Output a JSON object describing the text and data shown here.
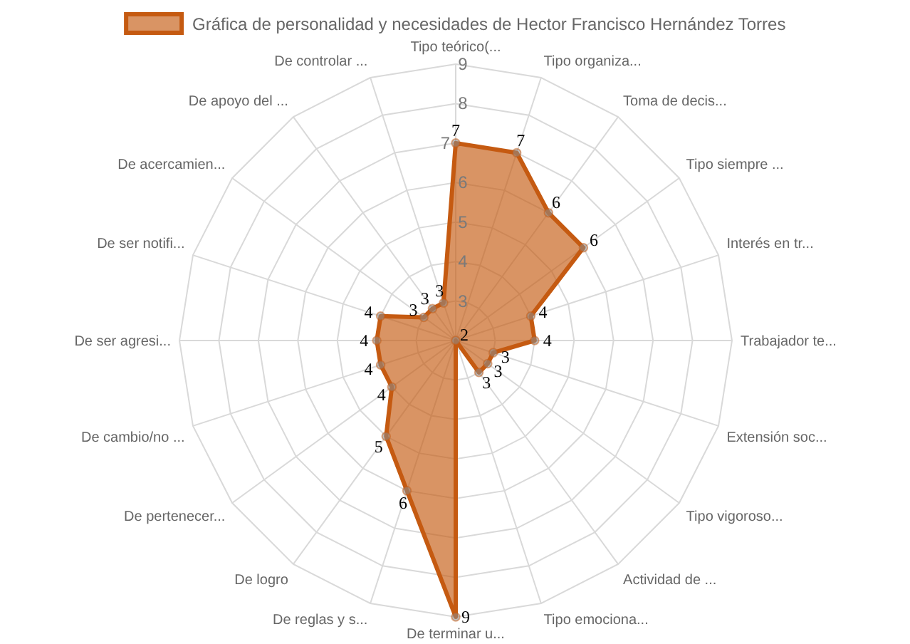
{
  "chart_data": {
    "type": "radar",
    "categories": [
      "Tipo teórico(...",
      "Tipo organiza...",
      "Toma de decis...",
      "Tipo siempre ...",
      "Interés en tr...",
      "Trabajador te...",
      "Extensión soc...",
      "Tipo vigoroso...",
      "Actividad de ...",
      "Tipo emociona...",
      "De terminar u...",
      "De reglas y s...",
      "De logro",
      "De pertenecer...",
      "De cambio/no ...",
      "De ser agresi...",
      "De ser notifi...",
      "De acercamien...",
      "De apoyo del ...",
      "De controlar ..."
    ],
    "series": [
      {
        "name": "Gráfica de personalidad y necesidades de Hector Francisco Hernández Torres",
        "color": "#c55a11",
        "values": [
          7,
          7,
          6,
          6,
          4,
          4,
          3,
          3,
          3,
          2,
          9,
          6,
          5,
          4,
          4,
          4,
          4,
          3,
          3,
          3
        ]
      }
    ],
    "ylim": [
      2,
      9
    ],
    "yticks": [
      3,
      4,
      5,
      6,
      7,
      8,
      9
    ],
    "grid": true,
    "legend": "top",
    "marker": "circle",
    "data_labels": true
  }
}
